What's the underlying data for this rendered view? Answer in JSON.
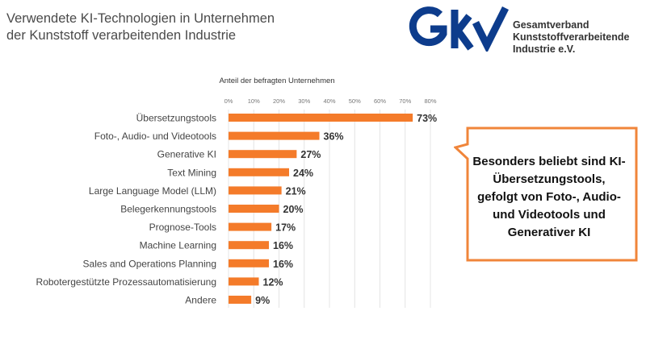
{
  "title_lines": [
    "Verwendete KI-Technologien in Unternehmen",
    "der Kunststoff verarbeitenden Industrie"
  ],
  "logo": {
    "mark": "GKV",
    "lines": [
      "Gesamtverband",
      "Kunststoffverarbeitende",
      "Industrie e.V."
    ]
  },
  "callout": {
    "text": "Besonders beliebt sind KI-Übersetzungstools, gefolgt von Foto-, Audio- und Videotools und Generativer KI"
  },
  "colors": {
    "bar": "#F47B2A",
    "callout_border": "#F0853A",
    "logo": "#0D3C8C"
  },
  "chart_data": {
    "type": "bar",
    "orientation": "horizontal",
    "xlabel": "Anteil der befragten Unternehmen",
    "xlim": [
      0,
      80
    ],
    "ticks": [
      "0%",
      "10%",
      "20%",
      "30%",
      "40%",
      "50%",
      "60%",
      "70%",
      "80%"
    ],
    "grid": true,
    "categories": [
      "Übersetzungstools",
      "Foto-, Audio- und Videotools",
      "Generative KI",
      "Text Mining",
      "Large Language Model (LLM)",
      "Belegerkennungstools",
      "Prognose-Tools",
      "Machine Learning",
      "Sales and Operations Planning",
      "Robotergestützte Prozessautomatisierung",
      "Andere"
    ],
    "values": [
      73,
      36,
      27,
      24,
      21,
      20,
      17,
      16,
      16,
      12,
      9
    ],
    "data_labels": [
      "73%",
      "36%",
      "27%",
      "24%",
      "21%",
      "20%",
      "17%",
      "16%",
      "16%",
      "12%",
      "9%"
    ]
  }
}
